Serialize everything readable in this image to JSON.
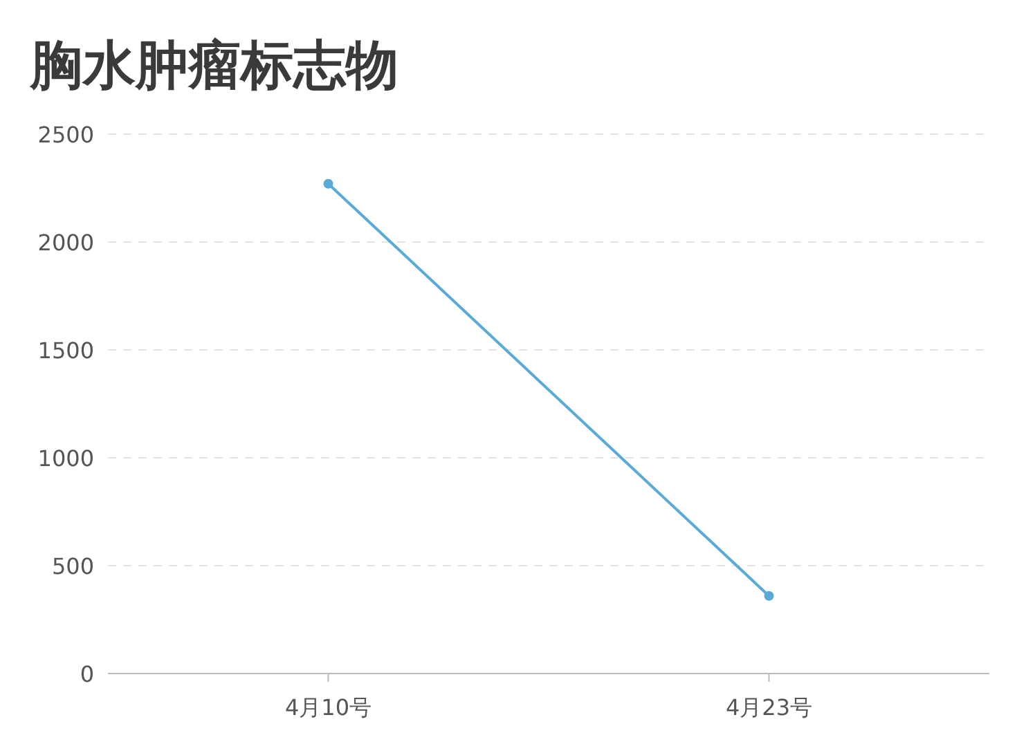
{
  "chart_data": {
    "type": "line",
    "title": "胸水肿瘤标志物",
    "categories": [
      "4月10号",
      "4月23号"
    ],
    "series": [
      {
        "color": "#5aaad8",
        "values": [
          2270,
          360
        ]
      }
    ],
    "ylim": [
      0,
      2500
    ],
    "yticks": [
      0,
      500,
      1000,
      1500,
      2000,
      2500
    ],
    "grid": "y",
    "marker": "circle"
  }
}
